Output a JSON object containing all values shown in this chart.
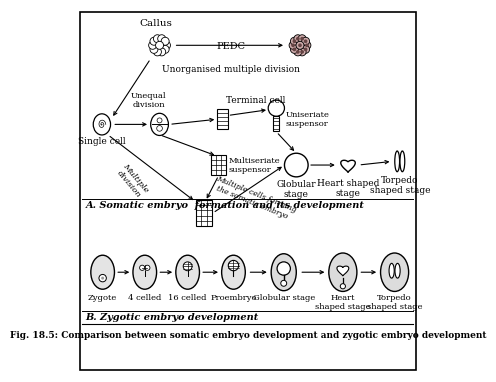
{
  "title": "Fig. 18.5: Comparison between somatic embryo development and zygotic embryo development",
  "section_a_label": "A. Somatic embryo  formation and its development",
  "section_b_label": "B. Zygotic embryo development",
  "bg_color": "#ffffff",
  "border_color": "#000000",
  "somatic_labels": {
    "callus": "Callus",
    "pedc": "PEDC",
    "unorganised": "Unorganised multiple division",
    "single_cell": "Single cell",
    "unequal": "Unequal\ndivision",
    "terminal": "Terminal cell",
    "uniseriate": "Uniseriate\nsuspensor",
    "multiseriate": "Multiseriate\nsuspensor",
    "multiple_div": "Multiple\ndivision",
    "multiple_cells": "Multiple cells forming\nthe somatic embryo",
    "globular": "Globular\nstage",
    "heart": "Heart shaped\nstage",
    "torpedo": "Torpedo\nshaped stage"
  },
  "zygotic_labels": [
    "Zygote",
    "4 celled",
    "16 celled",
    "Proembryo",
    "Globular stage",
    "Heart\nshaped stage",
    "Torpedo\nshaped stage"
  ]
}
